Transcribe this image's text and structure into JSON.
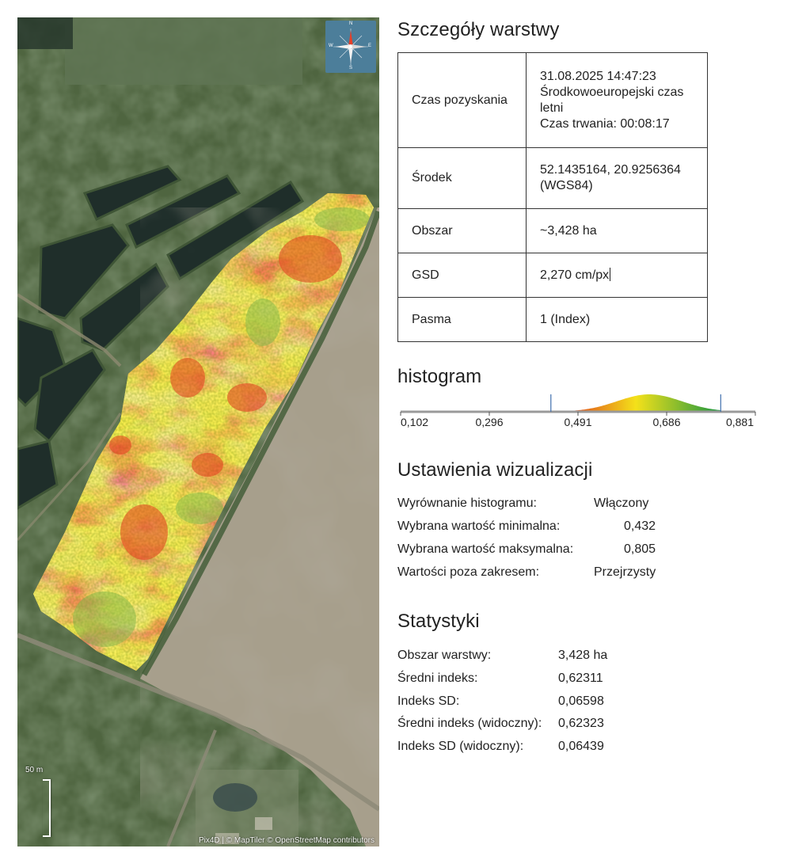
{
  "map": {
    "compass_letters": {
      "n": "N",
      "e": "E",
      "s": "S",
      "w": "W"
    },
    "scale_label": "50 m",
    "credits": "Pix4D | © MapTiler © OpenStreetMap contributors",
    "icon": "compass-rose-icon"
  },
  "details": {
    "title": "Szczegóły warstwy",
    "rows": [
      {
        "label": "Czas pozyskania",
        "lines": [
          "31.08.2025 14:47:23",
          "Środkowoeuropejski czas",
          "letni",
          "Czas trwania: 00:08:17"
        ]
      },
      {
        "label": "Środek",
        "lines": [
          "52.1435164, 20.9256364",
          "(WGS84)"
        ]
      },
      {
        "label": "Obszar",
        "lines": [
          "~3,428 ha"
        ]
      },
      {
        "label": "GSD",
        "lines": [
          "2,270 cm/px"
        ]
      },
      {
        "label": "Pasma",
        "lines": [
          "1 (Index)"
        ]
      }
    ]
  },
  "histogram": {
    "title": "histogram",
    "ticks": [
      "0,102",
      "0,296",
      "0,491",
      "0,686",
      "0,881"
    ],
    "range_min": 0.102,
    "range_max": 0.881,
    "selected_min": 0.432,
    "selected_max": 0.805,
    "colors": {
      "low": "#d7191c",
      "mid": "#f4e11a",
      "high": "#1a9641"
    }
  },
  "visualization": {
    "title": "Ustawienia wizualizacji",
    "rows": [
      {
        "key": "Wyrównanie histogramu:",
        "value": "Włączony"
      },
      {
        "key": "Wybrana wartość minimalna:",
        "value": "0,432"
      },
      {
        "key": "Wybrana wartość maksymalna:",
        "value": "0,805"
      },
      {
        "key": "Wartości poza zakresem:",
        "value": "Przejrzysty"
      }
    ]
  },
  "statistics": {
    "title": "Statystyki",
    "rows": [
      {
        "key": "Obszar warstwy:",
        "value": "3,428 ha"
      },
      {
        "key": "Średni indeks:",
        "value": "0,62311"
      },
      {
        "key": "Indeks SD:",
        "value": "0,06598"
      },
      {
        "key": "Średni indeks (widoczny):",
        "value": "0,62323"
      },
      {
        "key": "Indeks SD (widoczny):",
        "value": "0,06439"
      }
    ]
  }
}
